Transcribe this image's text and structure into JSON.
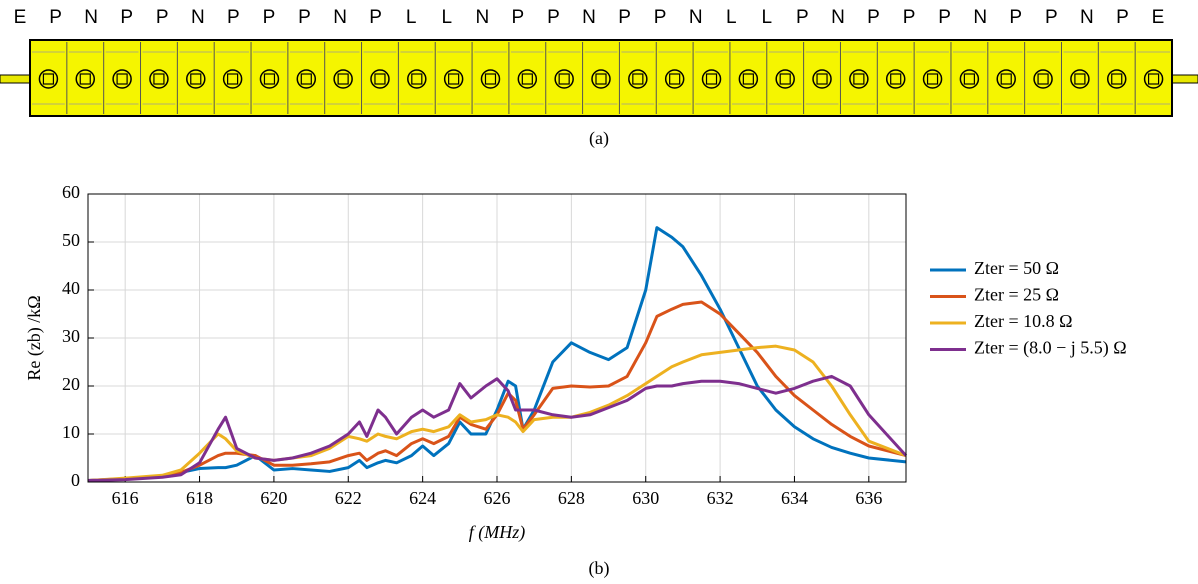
{
  "diagram": {
    "cells": [
      "E",
      "P",
      "N",
      "P",
      "P",
      "N",
      "P",
      "P",
      "P",
      "N",
      "P",
      "L",
      "L",
      "N",
      "P",
      "P",
      "N",
      "P",
      "P",
      "N",
      "L",
      "L",
      "P",
      "N",
      "P",
      "P",
      "P",
      "N",
      "P",
      "P",
      "N",
      "P",
      "E"
    ],
    "caption": "(a)"
  },
  "chart_data": {
    "type": "line",
    "caption": "(b)",
    "x_label": "f (MHz)",
    "y_label": "Re (zb) /kΩ",
    "xlim": [
      615,
      637
    ],
    "xticks": [
      616,
      618,
      620,
      622,
      624,
      626,
      628,
      630,
      632,
      634,
      636
    ],
    "ylim": [
      0,
      60
    ],
    "yticks": [
      0,
      10,
      20,
      30,
      40,
      50,
      60
    ],
    "grid": true,
    "legend": "right",
    "x": [
      615,
      616,
      617,
      617.5,
      618,
      618.5,
      618.7,
      619,
      619.5,
      620,
      620.5,
      621,
      621.5,
      622,
      622.3,
      622.5,
      622.8,
      623,
      623.3,
      623.7,
      624,
      624.3,
      624.7,
      625,
      625.3,
      625.7,
      626,
      626.3,
      626.5,
      626.7,
      627,
      627.5,
      628,
      628.5,
      629,
      629.5,
      630,
      630.3,
      630.7,
      631,
      631.5,
      632,
      632.5,
      633,
      633.5,
      634,
      634.5,
      635,
      635.5,
      636,
      637
    ],
    "series": [
      {
        "name": "Zter = 50 Ω",
        "color": "#0072bd",
        "values": [
          0.3,
          0.6,
          1.2,
          2,
          2.8,
          3,
          3,
          3.5,
          5.5,
          2.5,
          2.8,
          2.5,
          2.2,
          3,
          4.5,
          3,
          4,
          4.5,
          4,
          5.5,
          7.5,
          5.5,
          8,
          12.5,
          10,
          10,
          15,
          21,
          20,
          11,
          15,
          25,
          29,
          27,
          25.5,
          28,
          40,
          53,
          51,
          49,
          43,
          36,
          28,
          20,
          15,
          11.5,
          9,
          7.2,
          6,
          5,
          4.2
        ]
      },
      {
        "name": "Zter = 25 Ω",
        "color": "#d95319",
        "values": [
          0.3,
          0.7,
          1.3,
          2,
          3.5,
          5.5,
          6,
          6,
          5.5,
          3.5,
          3.5,
          3.8,
          4.2,
          5.5,
          6,
          4.5,
          6,
          6.5,
          5.5,
          8,
          9,
          8,
          9.5,
          13.5,
          12,
          11,
          14,
          18.5,
          17,
          11,
          14,
          19.5,
          20,
          19.8,
          20,
          22,
          29,
          34.5,
          36,
          37,
          37.5,
          35,
          31,
          27,
          22,
          18,
          15,
          12,
          9.5,
          7.5,
          5.5
        ]
      },
      {
        "name": "Zter = 10.8 Ω",
        "color": "#edb120",
        "values": [
          0.3,
          0.8,
          1.4,
          2.5,
          6,
          10,
          9,
          6.5,
          5,
          4.5,
          5,
          5.5,
          7,
          9.5,
          9,
          8.5,
          10,
          9.5,
          9,
          10.5,
          11,
          10.5,
          11.5,
          14,
          12.5,
          13,
          14,
          13.5,
          12.5,
          10.5,
          13,
          13.5,
          13.5,
          14.5,
          16,
          18,
          20.5,
          22,
          24,
          25,
          26.5,
          27,
          27.5,
          28,
          28.3,
          27.5,
          25,
          20,
          14,
          8.5,
          5.5
        ]
      },
      {
        "name": "Zter = (8.0 − j 5.5) Ω",
        "color": "#7e2f8e",
        "values": [
          0.3,
          0.5,
          1,
          1.5,
          4,
          11,
          13.5,
          7,
          5,
          4.5,
          5,
          6,
          7.5,
          10,
          12.5,
          9.5,
          15,
          13.5,
          10,
          13.5,
          15,
          13.5,
          15,
          20.5,
          17.5,
          20,
          21.5,
          19,
          15,
          15,
          15,
          14,
          13.5,
          14,
          15.5,
          17,
          19.5,
          20,
          20,
          20.5,
          21,
          21,
          20.5,
          19.5,
          18.5,
          19.5,
          21,
          22,
          20,
          14,
          5.5
        ]
      }
    ]
  }
}
